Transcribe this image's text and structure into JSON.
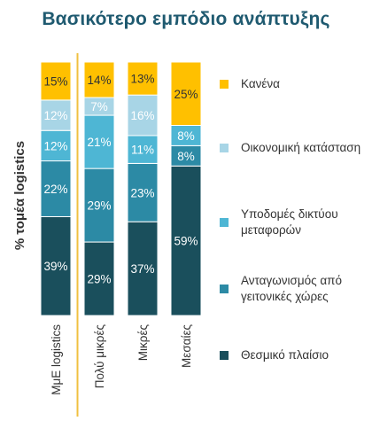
{
  "chart_data": {
    "type": "bar",
    "stacked": true,
    "title": "Βασικότερο εμπόδιο ανάπτυξης",
    "ylabel": "% τομέα logistics",
    "categories": [
      "ΜμΕ logistics",
      "Πολύ μικρές",
      "Μικρές",
      "Μεσαίες"
    ],
    "series": [
      {
        "name": "Θεσμικό πλαίσιο",
        "color": "#1a4f5c",
        "values": [
          39,
          29,
          37,
          59
        ]
      },
      {
        "name": "Ανταγωνισμός από γειτονικές χώρες",
        "color": "#2c8aa5",
        "values": [
          22,
          29,
          23,
          8
        ]
      },
      {
        "name": "Υποδομές δικτύου μεταφορών",
        "color": "#4eb6d4",
        "values": [
          12,
          21,
          11,
          8
        ]
      },
      {
        "name": "Οικονομική κατάσταση",
        "color": "#a8d5e6",
        "values": [
          12,
          7,
          16,
          0
        ]
      },
      {
        "name": "Κανένα",
        "color": "#ffc000",
        "values": [
          15,
          14,
          13,
          25
        ]
      }
    ],
    "ylim": [
      0,
      100
    ],
    "separator_after_category": 0,
    "legend_position": "right"
  }
}
